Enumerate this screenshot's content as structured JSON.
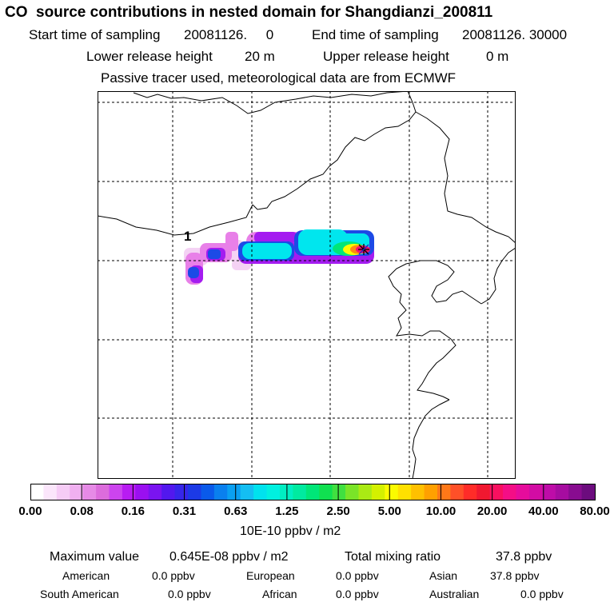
{
  "header": {
    "title": "CO  source contributions in nested domain for Shangdianzi_200811",
    "start_label": "Start time of sampling",
    "start_value": "20081126.     0",
    "end_label": "End time of sampling",
    "end_value": "20081126. 30000",
    "lower_label": "Lower release height",
    "lower_value": "20 m",
    "upper_label": "Upper release height",
    "upper_value": "0 m",
    "note": "Passive tracer used, meteorological data are from ECMWF"
  },
  "map": {
    "marker_label": "1",
    "station_marker": "station-asterisk",
    "plume_levels_ppbv_m2_1e-10": [
      0.08,
      0.16,
      0.31,
      0.63,
      1.25,
      2.5,
      5.0,
      10.0,
      20.0,
      40.0
    ]
  },
  "colorbar": {
    "labels": [
      "0.00",
      "0.08",
      "0.16",
      "0.31",
      "0.63",
      "1.25",
      "2.50",
      "5.00",
      "10.00",
      "20.00",
      "40.00",
      "80.00"
    ],
    "colors": [
      "#ffffff",
      "#fbe6fb",
      "#f6ccf6",
      "#f0b0f0",
      "#e68ae6",
      "#dc6cdc",
      "#cc44ee",
      "#b81cf2",
      "#9a10f0",
      "#7a14f0",
      "#5218ee",
      "#3626ea",
      "#1c3ae6",
      "#0a5aea",
      "#0a80ee",
      "#0aa0f2",
      "#14bef2",
      "#00e2ee",
      "#00f0e0",
      "#00eec2",
      "#00eaa0",
      "#00e678",
      "#10e050",
      "#40e040",
      "#7ae428",
      "#aaea14",
      "#d4f000",
      "#fbfb00",
      "#ffe000",
      "#ffc000",
      "#ffa000",
      "#ff7818",
      "#ff5028",
      "#ff2c28",
      "#f01830",
      "#f81060",
      "#f40e86",
      "#e60c9c",
      "#d20ca4",
      "#be0ca8",
      "#a60ca0",
      "#880c90",
      "#6c0c7e"
    ],
    "units": "10E-10 ppbv / m2"
  },
  "stats": {
    "max_label": "Maximum value",
    "max_value": "0.645E-08 ppbv / m2",
    "total_label": "Total mixing ratio",
    "total_value": "37.8 ppbv",
    "regions": [
      {
        "name": "American",
        "value": "0.0 ppbv"
      },
      {
        "name": "European",
        "value": "0.0 ppbv"
      },
      {
        "name": "Asian",
        "value": "37.8 ppbv"
      },
      {
        "name": "South American",
        "value": "0.0 ppbv"
      },
      {
        "name": "African",
        "value": "0.0 ppbv"
      },
      {
        "name": "Australian",
        "value": "0.0 ppbv"
      }
    ]
  }
}
